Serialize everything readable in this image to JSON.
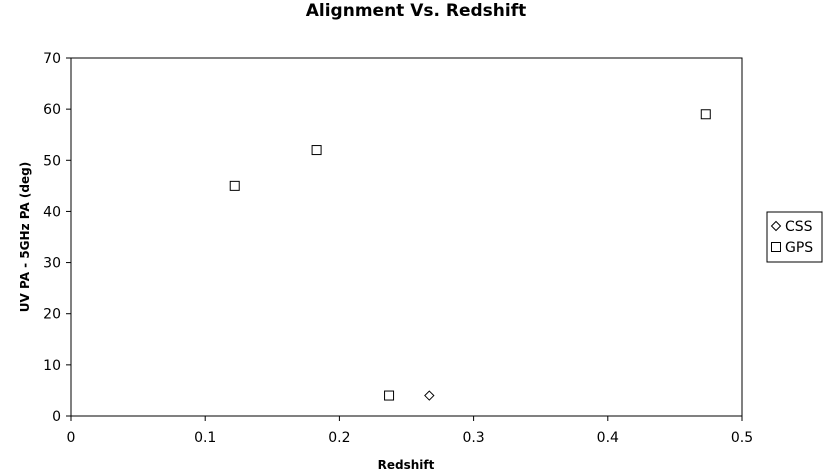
{
  "chart_data": {
    "type": "scatter",
    "title": "Alignment Vs. Redshift",
    "xlabel": "Redshift",
    "ylabel": "UV PA - 5GHz PA (deg)",
    "xlim": [
      0,
      0.5
    ],
    "ylim": [
      0,
      70
    ],
    "x_ticks": [
      0,
      0.1,
      0.2,
      0.3,
      0.4,
      0.5
    ],
    "x_tick_labels": [
      "0",
      "0.1",
      "0.2",
      "0.3",
      "0.4",
      "0.5"
    ],
    "y_ticks": [
      0,
      10,
      20,
      30,
      40,
      50,
      60,
      70
    ],
    "y_tick_labels": [
      "0",
      "10",
      "20",
      "30",
      "40",
      "50",
      "60",
      "70"
    ],
    "grid": false,
    "legend_position": "right",
    "series": [
      {
        "name": "CSS",
        "marker": "diamond",
        "points": [
          {
            "x": 0.267,
            "y": 4
          }
        ]
      },
      {
        "name": "GPS",
        "marker": "square",
        "points": [
          {
            "x": 0.122,
            "y": 45
          },
          {
            "x": 0.183,
            "y": 52
          },
          {
            "x": 0.237,
            "y": 4
          },
          {
            "x": 0.473,
            "y": 59
          }
        ]
      }
    ]
  }
}
